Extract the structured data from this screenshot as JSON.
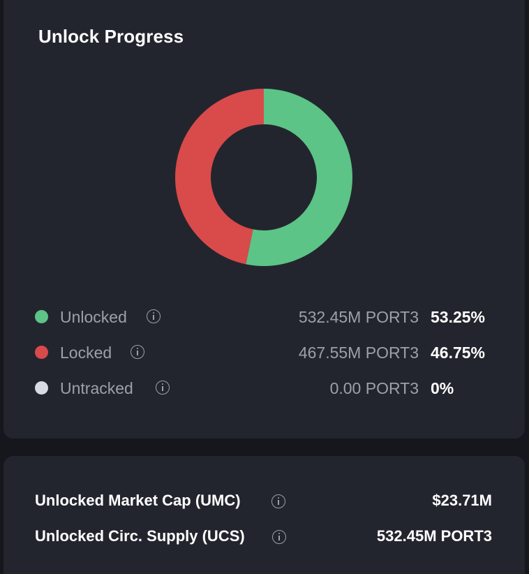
{
  "unlock_progress": {
    "title": "Unlock Progress",
    "legend": [
      {
        "label": "Unlocked",
        "amount": "532.45M PORT3",
        "percent": "53.25%",
        "color": "#5cc486"
      },
      {
        "label": "Locked",
        "amount": "467.55M PORT3",
        "percent": "46.75%",
        "color": "#d94a4a"
      },
      {
        "label": "Untracked",
        "amount": "0.00 PORT3",
        "percent": "0%",
        "color": "#d9dbe3"
      }
    ]
  },
  "stats": {
    "umc_label": "Unlocked Market Cap (UMC)",
    "umc_value": "$23.71M",
    "ucs_label": "Unlocked Circ. Supply (UCS)",
    "ucs_value": "532.45M PORT3"
  },
  "icons": {
    "info": "info-circle-icon"
  },
  "colors": {
    "background": "#15171d",
    "card": "#23252e",
    "text_primary": "#ffffff",
    "text_secondary": "#9ca0ac"
  },
  "chart_data": {
    "type": "pie",
    "title": "Unlock Progress",
    "categories": [
      "Unlocked",
      "Locked",
      "Untracked"
    ],
    "values": [
      53.25,
      46.75,
      0
    ],
    "amounts": [
      "532.45M PORT3",
      "467.55M PORT3",
      "0.00 PORT3"
    ],
    "colors": [
      "#5cc486",
      "#d94a4a",
      "#d9dbe3"
    ],
    "donut": true,
    "legend_position": "bottom"
  }
}
